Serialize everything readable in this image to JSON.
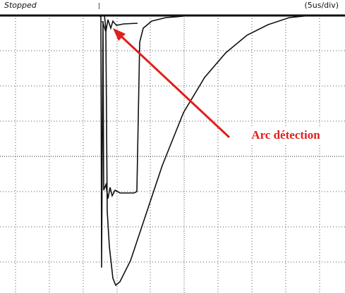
{
  "header": {
    "status": "Stopped",
    "timebase": "(5us/div)"
  },
  "annotation": {
    "label": "Arc détection"
  }
}
